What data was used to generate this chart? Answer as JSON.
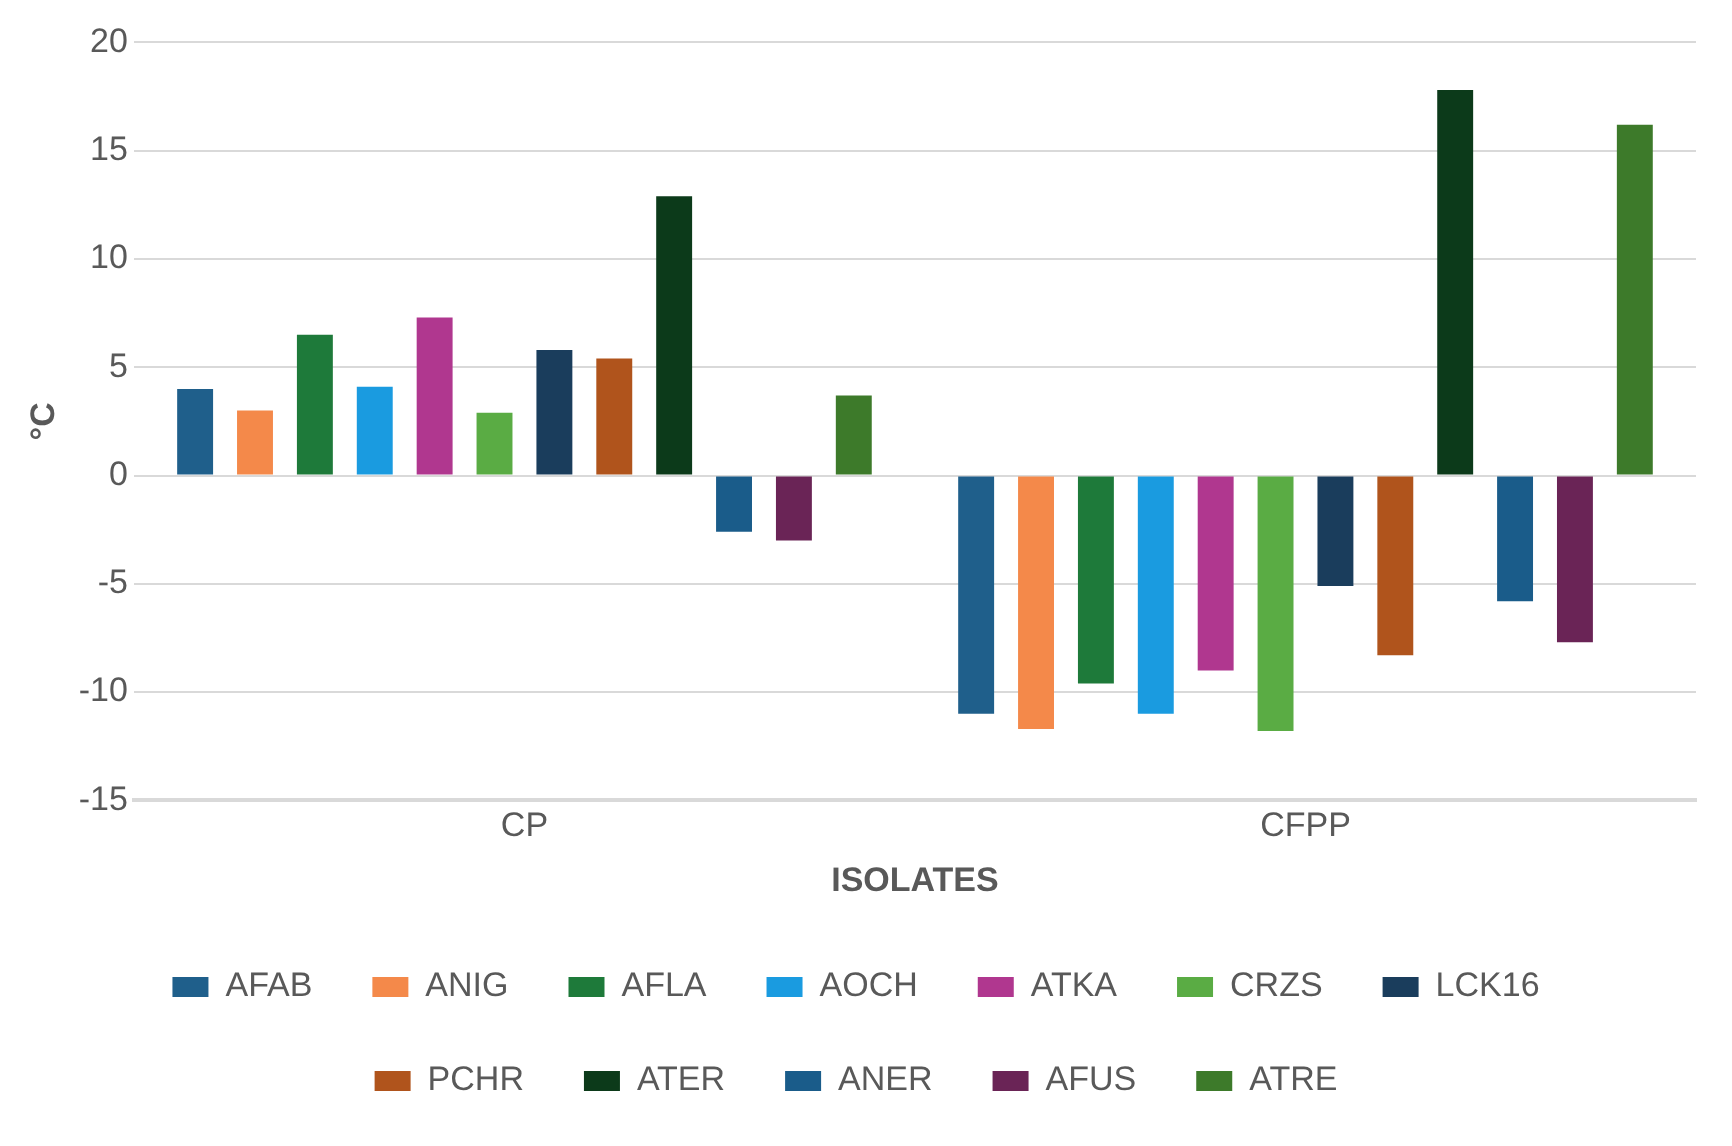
{
  "chart_data": {
    "type": "bar",
    "xlabel": "ISOLATES",
    "ylabel": "°C",
    "categories": [
      "CP",
      "CFPP"
    ],
    "series": [
      {
        "name": "AFAB",
        "color": "#1f5f8b",
        "values": [
          4.0,
          -11.0
        ]
      },
      {
        "name": "ANIG",
        "color": "#f4894a",
        "values": [
          3.0,
          -11.7
        ]
      },
      {
        "name": "AFLA",
        "color": "#1e7a3a",
        "values": [
          6.5,
          -9.6
        ]
      },
      {
        "name": "AOCH",
        "color": "#1a9be0",
        "values": [
          4.1,
          -11.0
        ]
      },
      {
        "name": "ATKA",
        "color": "#b0378f",
        "values": [
          7.3,
          -9.0
        ]
      },
      {
        "name": "CRZS",
        "color": "#5aac44",
        "values": [
          2.9,
          -11.8
        ]
      },
      {
        "name": "LCK16",
        "color": "#1a3d5c",
        "values": [
          5.8,
          -5.1
        ]
      },
      {
        "name": "PCHR",
        "color": "#b0541c",
        "values": [
          5.4,
          -8.3
        ]
      },
      {
        "name": "ATER",
        "color": "#0c3a1a",
        "values": [
          12.9,
          17.8
        ]
      },
      {
        "name": "ANER",
        "color": "#1a5c8a",
        "values": [
          -2.6,
          -5.8
        ]
      },
      {
        "name": "AFUS",
        "color": "#6a2456",
        "values": [
          -3.0,
          -7.7
        ]
      },
      {
        "name": "ATRE",
        "color": "#3d7a2a",
        "values": [
          3.7,
          16.2
        ]
      }
    ],
    "ylim": [
      -15,
      20
    ],
    "yticks": [
      -15,
      -10,
      -5,
      0,
      5,
      10,
      15,
      20
    ],
    "grid": "y",
    "legend": "bottom"
  }
}
